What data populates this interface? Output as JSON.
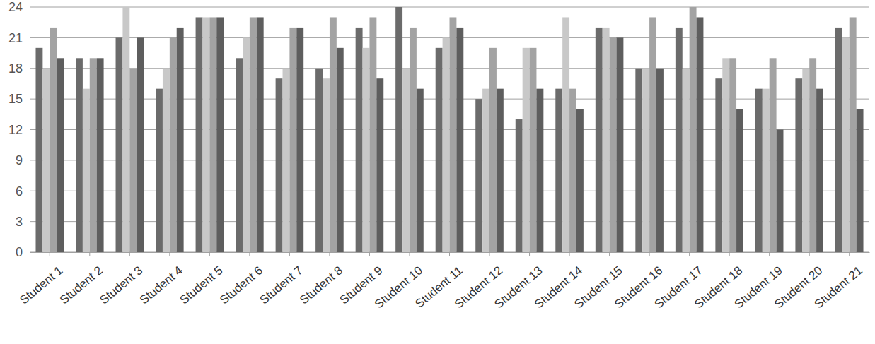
{
  "chart_data": {
    "type": "bar",
    "categories": [
      "Student 1",
      "Student 2",
      "Student 3",
      "Student 4",
      "Student 5",
      "Student 6",
      "Student 7",
      "Student 8",
      "Student 9",
      "Student 10",
      "Student 11",
      "Student 12",
      "Student 13",
      "Student 14",
      "Student 15",
      "Student 16",
      "Student 17",
      "Student 18",
      "Student 19",
      "Student 20",
      "Student 21"
    ],
    "series": [
      {
        "color": "#6b6b6b",
        "values": [
          20,
          19,
          21,
          16,
          23,
          19,
          17,
          18,
          22,
          24,
          20,
          15,
          13,
          16,
          22,
          18,
          22,
          17,
          16,
          17,
          22
        ]
      },
      {
        "color": "#c8c8c8",
        "values": [
          18,
          16,
          24,
          18,
          23,
          21,
          18,
          17,
          20,
          18,
          21,
          16,
          20,
          23,
          22,
          18,
          18,
          19,
          16,
          18,
          21
        ]
      },
      {
        "color": "#a3a3a3",
        "values": [
          22,
          19,
          18,
          21,
          23,
          23,
          22,
          23,
          23,
          22,
          23,
          20,
          20,
          16,
          21,
          23,
          24,
          19,
          19,
          19,
          23
        ]
      },
      {
        "color": "#5e5e5e",
        "values": [
          19,
          19,
          21,
          22,
          23,
          23,
          22,
          20,
          17,
          16,
          22,
          16,
          16,
          14,
          21,
          18,
          23,
          14,
          12,
          16,
          14
        ]
      }
    ],
    "ylim": [
      0,
      24
    ],
    "yticks": [
      0,
      3,
      6,
      9,
      12,
      15,
      18,
      21,
      24
    ],
    "grid": true
  }
}
